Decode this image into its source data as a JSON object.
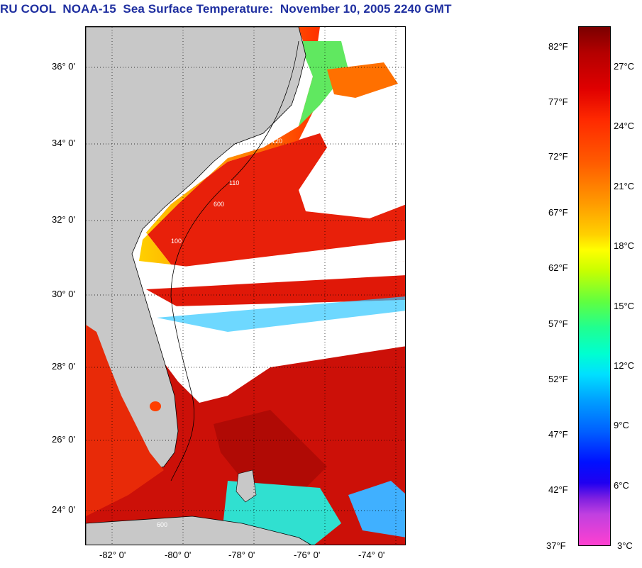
{
  "title": "RU COOL  NOAA-15  Sea Surface Temperature:  November 10, 2005 2240 GMT",
  "map": {
    "lat_labels": [
      "36° 0'",
      "34° 0'",
      "32° 0'",
      "30° 0'",
      "28° 0'",
      "26° 0'",
      "24° 0'"
    ],
    "lon_labels": [
      "-82° 0'",
      "-80° 0'",
      "-78° 0'",
      "-76° 0'",
      "-74° 0'"
    ],
    "land_color": "#c8c8c8",
    "cloud_color": "#ffffff",
    "contour_labels": [
      "120",
      "110",
      "600",
      "100",
      "600"
    ]
  },
  "colorbar": {
    "fahrenheit_labels": [
      "82°F",
      "77°F",
      "72°F",
      "67°F",
      "62°F",
      "57°F",
      "52°F",
      "47°F",
      "42°F",
      "37°F"
    ],
    "celsius_labels": [
      "27°C",
      "24°C",
      "21°C",
      "18°C",
      "15°C",
      "12°C",
      "9°C",
      "6°C",
      "3°C"
    ]
  }
}
